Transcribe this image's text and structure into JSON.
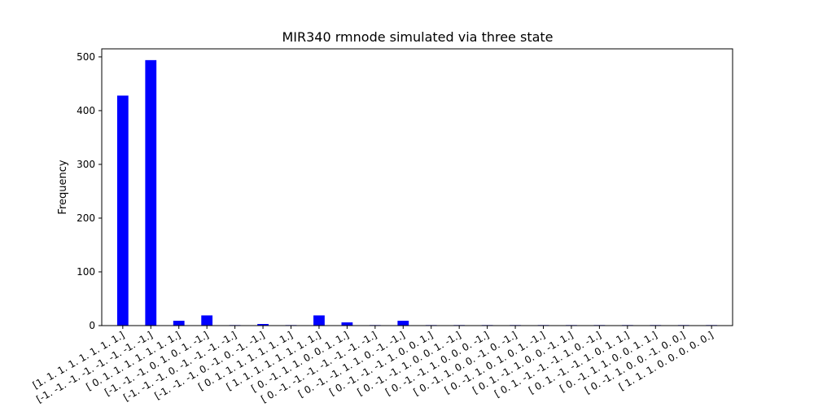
{
  "chart_data": {
    "type": "bar",
    "title": "MIR340 rmnode simulated via three state",
    "xlabel": "",
    "ylabel": "Frequency",
    "ylim": [
      0,
      515
    ],
    "yticks": [
      0,
      100,
      200,
      300,
      400,
      500
    ],
    "grid": false,
    "bar_color": "#0000ff",
    "categories": [
      "[1. 1. 1. 1. 1. 1. 1. 1.]",
      "[-1. -1. -1. -1. -1. -1. -1. -1.]",
      "[ 0. 1. 1. 1. 1. 1. 1. 1.]",
      "[-1. -1. -1. 0. 1. 0. 1. -1.]",
      "[-1. -1. -1. 0. -1. -1. -1. -1.]",
      "[-1. -1. -1. 0. -1. 0. -1. -1.]",
      "[ 0. 1. 1. 1. 1. 1. 1. 1.]",
      "[ 1. 1. 1. 1. 1. 1. 1. 1.]",
      "[ 0. -1. 1. 1. 0. 0. 1. 1.]",
      "[ 0. -1. -1. -1. -1. -1. -1. -1.]",
      "[ 0. -1. -1. 1. 1. 0. -1. -1.]",
      "[ 0. -1. -1. -1. 1. 0. 0. 1.]",
      "[ 0. -1. -1. 1. 0. 0. 1. -1.]",
      "[ 0. -1. -1. 1. 0. 0. 0. -1.]",
      "[ 0. -1. 1. 0. 0. -1. 0. -1.]",
      "[ 0. -1. 1. 0. 1. 0. 1. -1.]",
      "[ 0. 1. -1. 1. 0. 0. -1. 1.]",
      "[ 0. 1. -1. -1. -1. 1. 0. -1.]",
      "[ 0. 1. -1. -1. 1. 0. 1. 1.]",
      "[ 0. -1. 1. 1. 0. 0. 1. 1.]",
      "[ 0. -1. 1. 0. 0. -1. 0. 0.]",
      "[ 1. 1. 1. 0. 0. 0. 0. 0.]"
    ],
    "values": [
      428,
      494,
      9,
      19,
      1,
      3,
      1,
      19,
      6,
      1,
      9,
      1,
      1,
      1,
      1,
      1,
      1,
      1,
      1,
      1,
      1,
      1
    ]
  }
}
